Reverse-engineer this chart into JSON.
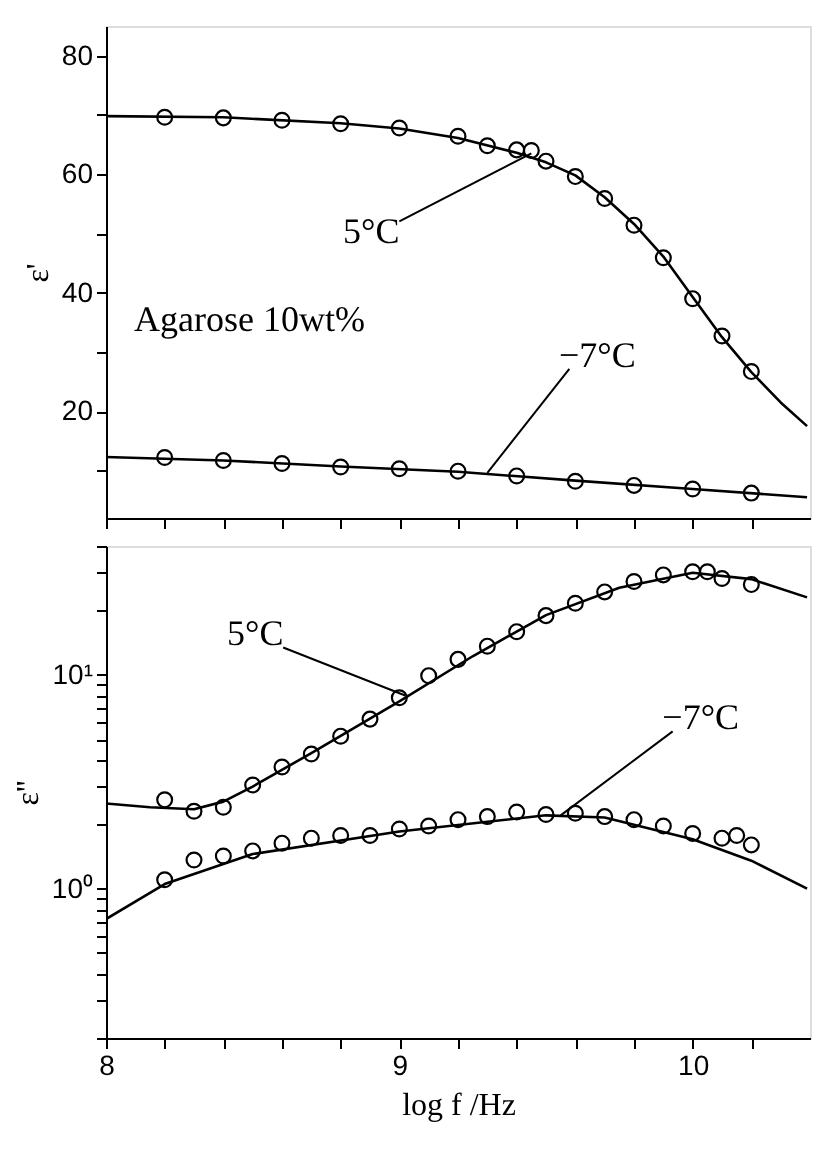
{
  "chart_data": [
    {
      "type": "scatter",
      "ylabel": "ε'",
      "xlim": [
        8,
        10.4
      ],
      "ylim": [
        2,
        85
      ],
      "tick_labels": "y",
      "grid": false,
      "xticks": [
        8,
        {
          "value": 8.2,
          "label": null
        },
        {
          "value": 8.4,
          "label": null
        },
        {
          "value": 8.6,
          "label": null
        },
        {
          "value": 8.8,
          "label": null
        },
        9,
        {
          "value": 9.2,
          "label": null
        },
        {
          "value": 9.4,
          "label": null
        },
        {
          "value": 9.6,
          "label": null
        },
        {
          "value": 9.8,
          "label": null
        },
        10,
        {
          "value": 10.2,
          "label": null
        }
      ],
      "yticks": [
        {
          "value": 10,
          "label": null
        },
        20,
        {
          "value": 30,
          "label": null
        },
        40,
        {
          "value": 50,
          "label": null
        },
        60,
        {
          "value": 70,
          "label": null
        },
        80
      ],
      "annotations": [
        "Agarose 10wt%",
        {
          "text": "5°C",
          "x": 9.45,
          "y": 63.5
        },
        {
          "text": "−7°C",
          "x": 9.3,
          "y": 9.6
        }
      ],
      "series": [
        {
          "marker": "circle",
          "color": "#000000",
          "x": [
            8.2,
            8.4,
            8.6,
            8.8,
            9.0,
            9.2,
            9.3,
            9.4,
            9.45,
            9.5,
            9.6,
            9.7,
            9.8,
            9.9,
            10.0,
            10.1,
            10.2
          ],
          "values": [
            69.6,
            69.5,
            69.1,
            68.5,
            67.8,
            66.4,
            64.8,
            64.1,
            64.0,
            62.2,
            59.6,
            55.9,
            51.4,
            45.9,
            39.0,
            32.7,
            26.7
          ]
        },
        {
          "type": "line",
          "color": "#000000",
          "x": [
            8.0,
            8.4,
            8.8,
            9.0,
            9.2,
            9.4,
            9.5,
            9.6,
            9.7,
            9.8,
            9.9,
            10.0,
            10.1,
            10.2,
            10.3,
            10.39
          ],
          "values": [
            69.8,
            69.6,
            68.6,
            67.7,
            66.1,
            63.6,
            62.0,
            59.8,
            56.1,
            51.6,
            46.1,
            39.3,
            32.5,
            26.6,
            21.5,
            17.5
          ]
        },
        {
          "marker": "circle",
          "color": "#000000",
          "x": [
            8.2,
            8.4,
            8.6,
            8.8,
            9.0,
            9.2,
            9.4,
            9.6,
            9.8,
            10.0,
            10.2
          ],
          "values": [
            12.2,
            11.7,
            11.2,
            10.6,
            10.3,
            9.9,
            9.1,
            8.2,
            7.5,
            6.9,
            6.2
          ]
        },
        {
          "type": "line",
          "color": "#000000",
          "x": [
            8.0,
            8.4,
            8.8,
            9.2,
            9.6,
            10.0,
            10.39
          ],
          "values": [
            12.3,
            11.7,
            10.7,
            9.8,
            8.3,
            6.9,
            5.5
          ]
        }
      ]
    },
    {
      "type": "scatter",
      "xlabel": "log f /Hz",
      "ylabel": "ε''",
      "xlim": [
        8,
        10.4
      ],
      "ylim": [
        0.2,
        40
      ],
      "log": "y",
      "grid": false,
      "xticks": [
        8,
        {
          "value": 8.2,
          "label": null
        },
        {
          "value": 8.4,
          "label": null
        },
        {
          "value": 8.6,
          "label": null
        },
        {
          "value": 8.8,
          "label": null
        },
        9,
        {
          "value": 9.2,
          "label": null
        },
        {
          "value": 9.4,
          "label": null
        },
        {
          "value": 9.6,
          "label": null
        },
        {
          "value": 9.8,
          "label": null
        },
        10,
        {
          "value": 10.2,
          "label": null
        }
      ],
      "yticks": [
        {
          "value": 0.2,
          "label": null
        },
        {
          "value": 0.3,
          "label": null
        },
        {
          "value": 0.4,
          "label": null
        },
        {
          "value": 0.5,
          "label": null
        },
        {
          "value": 0.6,
          "label": null
        },
        {
          "value": 0.7,
          "label": null
        },
        {
          "value": 0.8,
          "label": null
        },
        {
          "value": 0.9,
          "label": null
        },
        {
          "value": 1,
          "label": "10⁰"
        },
        {
          "value": 2,
          "label": null
        },
        {
          "value": 3,
          "label": null
        },
        {
          "value": 4,
          "label": null
        },
        {
          "value": 5,
          "label": null
        },
        {
          "value": 6,
          "label": null
        },
        {
          "value": 7,
          "label": null
        },
        {
          "value": 8,
          "label": null
        },
        {
          "value": 9,
          "label": null
        },
        {
          "value": 10,
          "label": "10¹"
        },
        {
          "value": 20,
          "label": null
        },
        {
          "value": 30,
          "label": null
        },
        {
          "value": 40,
          "label": null
        }
      ],
      "annotations": [
        {
          "text": "5°C",
          "x": 9.02,
          "y": 8
        },
        {
          "text": "−7°C",
          "x": 9.55,
          "y": 2.2
        }
      ],
      "series": [
        {
          "marker": "circle",
          "color": "#000000",
          "x": [
            8.2,
            8.3,
            8.4,
            8.5,
            8.6,
            8.7,
            8.8,
            8.9,
            9.0,
            9.1,
            9.2,
            9.3,
            9.4,
            9.5,
            9.6,
            9.7,
            9.8,
            9.9,
            10.0,
            10.05,
            10.1,
            10.2
          ],
          "values": [
            2.6,
            2.3,
            2.4,
            3.05,
            3.7,
            4.26,
            5.16,
            6.2,
            7.8,
            9.9,
            11.8,
            13.6,
            15.9,
            18.9,
            21.6,
            24.4,
            27.3,
            29.3,
            30.3,
            30.3,
            28.2,
            26.4
          ]
        },
        {
          "type": "line",
          "color": "#000000",
          "x": [
            8.0,
            8.15,
            8.3,
            8.4,
            8.5,
            8.7,
            9.0,
            9.25,
            9.5,
            9.75,
            10.0,
            10.2,
            10.39
          ],
          "values": [
            2.5,
            2.4,
            2.35,
            2.55,
            3.0,
            4.3,
            7.5,
            12.2,
            19,
            25.5,
            30,
            28,
            23
          ]
        },
        {
          "marker": "circle",
          "color": "#000000",
          "x": [
            8.2,
            8.3,
            8.4,
            8.5,
            8.6,
            8.7,
            8.8,
            8.9,
            9.0,
            9.1,
            9.2,
            9.3,
            9.4,
            9.5,
            9.6,
            9.7,
            9.8,
            9.9,
            10.0,
            10.1,
            10.15,
            10.2
          ],
          "values": [
            1.1,
            1.36,
            1.42,
            1.5,
            1.63,
            1.72,
            1.77,
            1.77,
            1.9,
            1.96,
            2.1,
            2.17,
            2.28,
            2.22,
            2.25,
            2.17,
            2.1,
            1.96,
            1.81,
            1.72,
            1.77,
            1.6
          ]
        },
        {
          "type": "line",
          "color": "#000000",
          "x": [
            8.0,
            8.2,
            8.5,
            9.0,
            9.5,
            9.7,
            10.0,
            10.2,
            10.39
          ],
          "values": [
            0.72,
            1.05,
            1.45,
            1.85,
            2.2,
            2.15,
            1.7,
            1.35,
            1.0
          ]
        }
      ]
    }
  ]
}
